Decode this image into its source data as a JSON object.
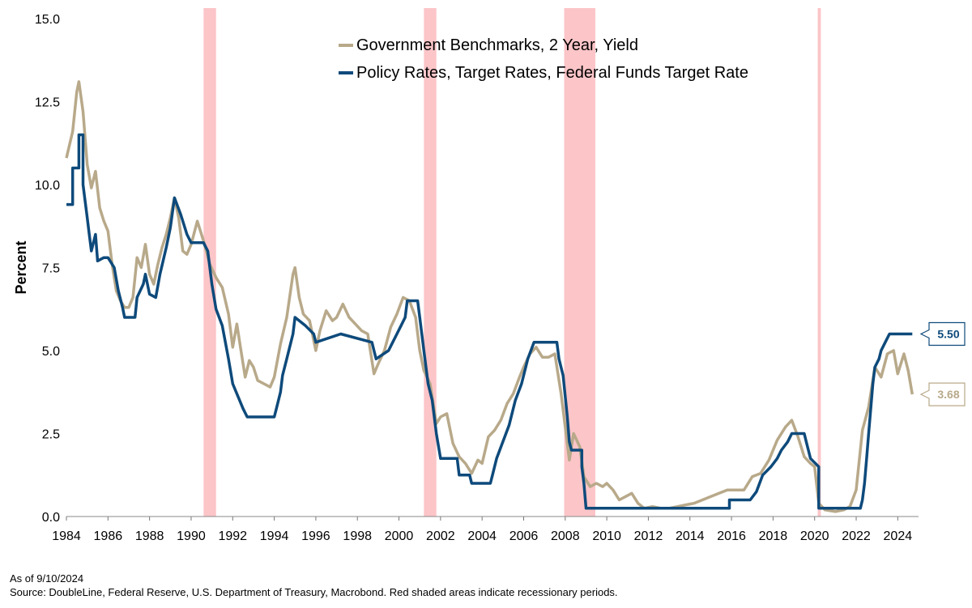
{
  "chart_data": {
    "type": "line",
    "ylabel": "Percent",
    "xlabel": "",
    "xlim": [
      1984,
      2025
    ],
    "ylim": [
      0,
      15
    ],
    "x_ticks": [
      "1984",
      "1986",
      "1988",
      "1990",
      "1992",
      "1994",
      "1996",
      "1998",
      "2000",
      "2002",
      "2004",
      "2006",
      "2008",
      "2010",
      "2012",
      "2014",
      "2016",
      "2018",
      "2020",
      "2022",
      "2024"
    ],
    "y_ticks": [
      "0.0",
      "2.5",
      "5.0",
      "7.5",
      "10.0",
      "12.5",
      "15.0"
    ],
    "legend_position": "top-center",
    "recessions": [
      {
        "start": 1990.6,
        "end": 1991.2
      },
      {
        "start": 2001.2,
        "end": 2001.8
      },
      {
        "start": 2007.95,
        "end": 2009.45
      },
      {
        "start": 2020.15,
        "end": 2020.3
      }
    ],
    "series": [
      {
        "name": "Government Benchmarks, 2 Year, Yield",
        "color": "#b8a98a",
        "end_label": "3.68",
        "points": [
          [
            1984.0,
            10.8
          ],
          [
            1984.3,
            11.6
          ],
          [
            1984.5,
            12.8
          ],
          [
            1984.6,
            13.1
          ],
          [
            1984.8,
            12.2
          ],
          [
            1985.0,
            10.6
          ],
          [
            1985.2,
            9.9
          ],
          [
            1985.4,
            10.4
          ],
          [
            1985.6,
            9.3
          ],
          [
            1985.8,
            8.9
          ],
          [
            1986.0,
            8.6
          ],
          [
            1986.2,
            7.6
          ],
          [
            1986.4,
            6.8
          ],
          [
            1986.6,
            6.5
          ],
          [
            1986.8,
            6.3
          ],
          [
            1987.0,
            6.3
          ],
          [
            1987.2,
            6.6
          ],
          [
            1987.4,
            7.8
          ],
          [
            1987.6,
            7.5
          ],
          [
            1987.8,
            8.2
          ],
          [
            1988.0,
            7.3
          ],
          [
            1988.2,
            7.0
          ],
          [
            1988.4,
            7.6
          ],
          [
            1988.6,
            8.1
          ],
          [
            1988.8,
            8.5
          ],
          [
            1989.0,
            9.0
          ],
          [
            1989.2,
            9.6
          ],
          [
            1989.4,
            9.0
          ],
          [
            1989.6,
            8.0
          ],
          [
            1989.8,
            7.9
          ],
          [
            1990.0,
            8.2
          ],
          [
            1990.3,
            8.9
          ],
          [
            1990.6,
            8.3
          ],
          [
            1990.9,
            7.6
          ],
          [
            1991.2,
            7.2
          ],
          [
            1991.5,
            6.9
          ],
          [
            1991.8,
            6.1
          ],
          [
            1992.0,
            5.1
          ],
          [
            1992.2,
            5.8
          ],
          [
            1992.4,
            5.0
          ],
          [
            1992.6,
            4.2
          ],
          [
            1992.8,
            4.7
          ],
          [
            1993.0,
            4.5
          ],
          [
            1993.2,
            4.1
          ],
          [
            1993.5,
            4.0
          ],
          [
            1993.8,
            3.9
          ],
          [
            1994.0,
            4.2
          ],
          [
            1994.3,
            5.2
          ],
          [
            1994.6,
            6.0
          ],
          [
            1994.9,
            7.3
          ],
          [
            1995.0,
            7.5
          ],
          [
            1995.2,
            6.6
          ],
          [
            1995.4,
            6.1
          ],
          [
            1995.7,
            5.9
          ],
          [
            1996.0,
            5.0
          ],
          [
            1996.2,
            5.6
          ],
          [
            1996.5,
            6.2
          ],
          [
            1996.8,
            5.9
          ],
          [
            1997.0,
            6.0
          ],
          [
            1997.3,
            6.4
          ],
          [
            1997.6,
            6.0
          ],
          [
            1997.9,
            5.8
          ],
          [
            1998.2,
            5.6
          ],
          [
            1998.5,
            5.5
          ],
          [
            1998.8,
            4.3
          ],
          [
            1999.0,
            4.6
          ],
          [
            1999.3,
            5.0
          ],
          [
            1999.6,
            5.7
          ],
          [
            1999.9,
            6.1
          ],
          [
            2000.2,
            6.6
          ],
          [
            2000.5,
            6.5
          ],
          [
            2000.8,
            6.0
          ],
          [
            2001.0,
            5.0
          ],
          [
            2001.2,
            4.4
          ],
          [
            2001.5,
            4.0
          ],
          [
            2001.8,
            2.8
          ],
          [
            2002.0,
            3.0
          ],
          [
            2002.3,
            3.1
          ],
          [
            2002.6,
            2.2
          ],
          [
            2002.9,
            1.8
          ],
          [
            2003.2,
            1.6
          ],
          [
            2003.5,
            1.3
          ],
          [
            2003.8,
            1.7
          ],
          [
            2004.0,
            1.6
          ],
          [
            2004.3,
            2.4
          ],
          [
            2004.6,
            2.6
          ],
          [
            2004.9,
            2.9
          ],
          [
            2005.2,
            3.4
          ],
          [
            2005.5,
            3.7
          ],
          [
            2005.8,
            4.2
          ],
          [
            2006.0,
            4.5
          ],
          [
            2006.3,
            4.9
          ],
          [
            2006.6,
            5.1
          ],
          [
            2006.9,
            4.8
          ],
          [
            2007.2,
            4.8
          ],
          [
            2007.5,
            4.9
          ],
          [
            2007.8,
            3.7
          ],
          [
            2008.0,
            2.7
          ],
          [
            2008.2,
            1.7
          ],
          [
            2008.4,
            2.5
          ],
          [
            2008.7,
            2.1
          ],
          [
            2008.9,
            1.2
          ],
          [
            2009.2,
            0.9
          ],
          [
            2009.5,
            1.0
          ],
          [
            2009.8,
            0.9
          ],
          [
            2010.0,
            1.0
          ],
          [
            2010.3,
            0.8
          ],
          [
            2010.6,
            0.5
          ],
          [
            2010.9,
            0.6
          ],
          [
            2011.2,
            0.7
          ],
          [
            2011.5,
            0.4
          ],
          [
            2011.8,
            0.25
          ],
          [
            2012.2,
            0.3
          ],
          [
            2012.6,
            0.25
          ],
          [
            2013.0,
            0.25
          ],
          [
            2013.4,
            0.3
          ],
          [
            2013.8,
            0.35
          ],
          [
            2014.2,
            0.4
          ],
          [
            2014.6,
            0.5
          ],
          [
            2015.0,
            0.6
          ],
          [
            2015.4,
            0.7
          ],
          [
            2015.8,
            0.8
          ],
          [
            2016.2,
            0.8
          ],
          [
            2016.6,
            0.8
          ],
          [
            2017.0,
            1.2
          ],
          [
            2017.4,
            1.3
          ],
          [
            2017.8,
            1.7
          ],
          [
            2018.2,
            2.3
          ],
          [
            2018.6,
            2.7
          ],
          [
            2018.9,
            2.9
          ],
          [
            2019.2,
            2.4
          ],
          [
            2019.5,
            1.8
          ],
          [
            2019.8,
            1.6
          ],
          [
            2020.0,
            1.5
          ],
          [
            2020.2,
            0.4
          ],
          [
            2020.5,
            0.2
          ],
          [
            2021.0,
            0.15
          ],
          [
            2021.4,
            0.2
          ],
          [
            2021.7,
            0.3
          ],
          [
            2022.0,
            0.8
          ],
          [
            2022.3,
            2.6
          ],
          [
            2022.6,
            3.3
          ],
          [
            2022.9,
            4.5
          ],
          [
            2023.2,
            4.2
          ],
          [
            2023.5,
            4.9
          ],
          [
            2023.8,
            5.0
          ],
          [
            2024.0,
            4.3
          ],
          [
            2024.3,
            4.9
          ],
          [
            2024.5,
            4.4
          ],
          [
            2024.7,
            3.68
          ]
        ]
      },
      {
        "name": "Policy Rates, Target Rates, Federal Funds Target Rate",
        "color": "#0e4a7b",
        "end_label": "5.50",
        "points": [
          [
            1984.0,
            9.4
          ],
          [
            1984.3,
            9.4
          ],
          [
            1984.3,
            10.5
          ],
          [
            1984.6,
            10.5
          ],
          [
            1984.6,
            11.5
          ],
          [
            1984.8,
            11.5
          ],
          [
            1984.8,
            10.0
          ],
          [
            1985.0,
            9.0
          ],
          [
            1985.1,
            8.5
          ],
          [
            1985.2,
            8.0
          ],
          [
            1985.4,
            8.5
          ],
          [
            1985.5,
            7.7
          ],
          [
            1985.8,
            7.8
          ],
          [
            1986.0,
            7.8
          ],
          [
            1986.3,
            7.5
          ],
          [
            1986.5,
            6.8
          ],
          [
            1986.7,
            6.3
          ],
          [
            1986.8,
            6.0
          ],
          [
            1987.3,
            6.0
          ],
          [
            1987.4,
            6.6
          ],
          [
            1987.7,
            7.0
          ],
          [
            1987.8,
            7.3
          ],
          [
            1988.0,
            6.7
          ],
          [
            1988.3,
            6.6
          ],
          [
            1988.5,
            7.3
          ],
          [
            1988.8,
            8.1
          ],
          [
            1989.0,
            8.7
          ],
          [
            1989.2,
            9.6
          ],
          [
            1989.5,
            9.1
          ],
          [
            1989.8,
            8.5
          ],
          [
            1990.0,
            8.25
          ],
          [
            1990.6,
            8.25
          ],
          [
            1990.8,
            8.0
          ],
          [
            1991.0,
            7.0
          ],
          [
            1991.2,
            6.25
          ],
          [
            1991.5,
            5.75
          ],
          [
            1991.8,
            4.75
          ],
          [
            1992.0,
            4.0
          ],
          [
            1992.5,
            3.25
          ],
          [
            1992.7,
            3.0
          ],
          [
            1994.0,
            3.0
          ],
          [
            1994.1,
            3.25
          ],
          [
            1994.3,
            3.75
          ],
          [
            1994.4,
            4.25
          ],
          [
            1994.6,
            4.75
          ],
          [
            1994.9,
            5.5
          ],
          [
            1995.0,
            6.0
          ],
          [
            1995.5,
            5.75
          ],
          [
            1995.9,
            5.5
          ],
          [
            1996.0,
            5.25
          ],
          [
            1997.2,
            5.5
          ],
          [
            1998.7,
            5.25
          ],
          [
            1998.8,
            5.0
          ],
          [
            1998.9,
            4.75
          ],
          [
            1999.5,
            5.0
          ],
          [
            1999.7,
            5.25
          ],
          [
            1999.9,
            5.5
          ],
          [
            2000.1,
            5.75
          ],
          [
            2000.3,
            6.0
          ],
          [
            2000.4,
            6.5
          ],
          [
            2000.9,
            6.5
          ],
          [
            2001.0,
            6.0
          ],
          [
            2001.2,
            5.0
          ],
          [
            2001.4,
            4.0
          ],
          [
            2001.6,
            3.5
          ],
          [
            2001.8,
            2.5
          ],
          [
            2002.0,
            1.75
          ],
          [
            2002.8,
            1.75
          ],
          [
            2002.9,
            1.25
          ],
          [
            2003.4,
            1.25
          ],
          [
            2003.5,
            1.0
          ],
          [
            2004.4,
            1.0
          ],
          [
            2004.5,
            1.25
          ],
          [
            2004.7,
            1.75
          ],
          [
            2005.0,
            2.25
          ],
          [
            2005.3,
            2.75
          ],
          [
            2005.6,
            3.5
          ],
          [
            2005.9,
            4.0
          ],
          [
            2006.2,
            4.75
          ],
          [
            2006.5,
            5.25
          ],
          [
            2007.6,
            5.25
          ],
          [
            2007.7,
            4.75
          ],
          [
            2007.9,
            4.25
          ],
          [
            2008.1,
            3.0
          ],
          [
            2008.2,
            2.25
          ],
          [
            2008.3,
            2.0
          ],
          [
            2008.8,
            2.0
          ],
          [
            2008.8,
            1.5
          ],
          [
            2008.9,
            1.0
          ],
          [
            2009.0,
            0.25
          ],
          [
            2015.9,
            0.25
          ],
          [
            2015.9,
            0.5
          ],
          [
            2016.9,
            0.5
          ],
          [
            2017.2,
            0.75
          ],
          [
            2017.5,
            1.25
          ],
          [
            2017.9,
            1.5
          ],
          [
            2018.2,
            1.75
          ],
          [
            2018.4,
            2.0
          ],
          [
            2018.7,
            2.25
          ],
          [
            2018.9,
            2.5
          ],
          [
            2019.5,
            2.5
          ],
          [
            2019.6,
            2.25
          ],
          [
            2019.7,
            2.0
          ],
          [
            2019.8,
            1.75
          ],
          [
            2020.2,
            1.5
          ],
          [
            2020.2,
            0.25
          ],
          [
            2022.2,
            0.25
          ],
          [
            2022.3,
            0.5
          ],
          [
            2022.4,
            1.0
          ],
          [
            2022.5,
            1.75
          ],
          [
            2022.6,
            2.5
          ],
          [
            2022.7,
            3.25
          ],
          [
            2022.8,
            4.0
          ],
          [
            2022.9,
            4.5
          ],
          [
            2023.1,
            4.75
          ],
          [
            2023.2,
            5.0
          ],
          [
            2023.4,
            5.25
          ],
          [
            2023.6,
            5.5
          ],
          [
            2024.7,
            5.5
          ]
        ]
      }
    ]
  },
  "footnotes": {
    "as_of": "As of 9/10/2024",
    "source": "Source: DoubleLine, Federal Reserve, U.S. Department of Treasury, Macrobond. Red shaded areas indicate recessionary periods."
  }
}
